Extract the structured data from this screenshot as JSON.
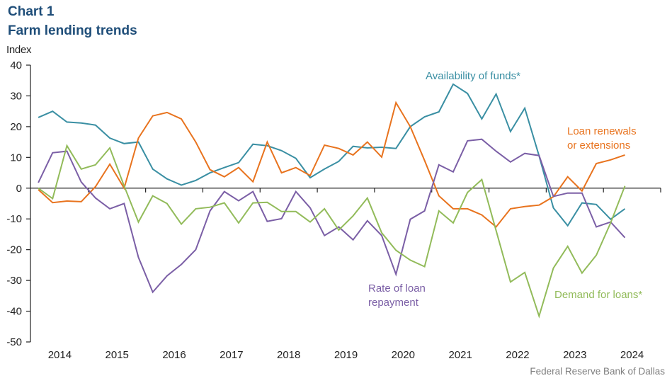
{
  "header": {
    "chart_number": "Chart 1",
    "title": "Farm lending trends",
    "title_color": "#1f4e79"
  },
  "source": "Federal Reserve Bank of Dallas",
  "chart_data": {
    "type": "line",
    "title": "Farm lending trends",
    "subtitle": "Chart 1",
    "xlabel": "",
    "ylabel": "Index",
    "ylim": [
      -50,
      40
    ],
    "yticks": [
      40,
      30,
      20,
      10,
      0,
      -10,
      -20,
      -30,
      -40,
      -50
    ],
    "xtick_labels": [
      "2014",
      "2015",
      "2016",
      "2017",
      "2018",
      "2019",
      "2020",
      "2021",
      "2022",
      "2023",
      "2024"
    ],
    "x_frequency": "quarterly",
    "x_start": "2014Q1",
    "x_end": "2024Q2",
    "grid": false,
    "legend": "inline annotations",
    "x": [
      "2014Q1",
      "2014Q2",
      "2014Q3",
      "2014Q4",
      "2015Q1",
      "2015Q2",
      "2015Q3",
      "2015Q4",
      "2016Q1",
      "2016Q2",
      "2016Q3",
      "2016Q4",
      "2017Q1",
      "2017Q2",
      "2017Q3",
      "2017Q4",
      "2018Q1",
      "2018Q2",
      "2018Q3",
      "2018Q4",
      "2019Q1",
      "2019Q2",
      "2019Q3",
      "2019Q4",
      "2020Q1",
      "2020Q2",
      "2020Q3",
      "2020Q4",
      "2021Q1",
      "2021Q2",
      "2021Q3",
      "2021Q4",
      "2022Q1",
      "2022Q2",
      "2022Q3",
      "2022Q4",
      "2023Q1",
      "2023Q2",
      "2023Q3",
      "2023Q4",
      "2024Q1",
      "2024Q2"
    ],
    "series": [
      {
        "name": "Availability of funds*",
        "color": "#3a8fa3",
        "label_lines": [
          "Availability of funds*"
        ],
        "values": [
          23,
          25,
          21.5,
          21.2,
          20.5,
          16.3,
          14.5,
          15,
          6.2,
          3,
          1,
          2.5,
          5,
          6.7,
          8.3,
          14.3,
          13.8,
          12.2,
          9.7,
          3.4,
          6.2,
          8.7,
          13.6,
          13.1,
          13.3,
          12.9,
          20,
          23.2,
          24.8,
          33.8,
          30.8,
          22.5,
          30.6,
          18.4,
          26,
          10.5,
          -6.4,
          -12.2,
          -4.8,
          -5.3,
          -10.1,
          -6.7
        ]
      },
      {
        "name": "Loan renewals or extensions",
        "color": "#e8731e",
        "label_lines": [
          "Loan renewals",
          "or extensions"
        ],
        "values": [
          -0.5,
          -4.7,
          -4.2,
          -4.4,
          0.5,
          7.8,
          0,
          16.3,
          23.5,
          24.6,
          22.5,
          15,
          6,
          3.7,
          6.7,
          2.1,
          15,
          5,
          6.7,
          4.1,
          14,
          12.9,
          10.8,
          15,
          10.1,
          27.8,
          20,
          9,
          -2.5,
          -6.7,
          -6.7,
          -8.7,
          -12.6,
          -6.7,
          -6,
          -5.5,
          -2.8,
          3.7,
          -0.9,
          8,
          9.2,
          10.8
        ]
      },
      {
        "name": "Rate of loan repayment",
        "color": "#7b5fa6",
        "label_lines": [
          "Rate of loan",
          "repayment"
        ],
        "values": [
          1.8,
          11.5,
          12,
          2,
          -3.2,
          -6.7,
          -5,
          -22.5,
          -33.8,
          -28.5,
          -24.8,
          -20,
          -7.4,
          -1.1,
          -4.1,
          -1.1,
          -10.8,
          -9.9,
          -1.1,
          -6.4,
          -15.4,
          -12.6,
          -16.8,
          -10.6,
          -15.4,
          -28,
          -10.1,
          -7.4,
          7.6,
          5.3,
          15.4,
          15.9,
          12,
          8.5,
          11.3,
          10.6,
          -2.7,
          -1.6,
          -1.6,
          -12.6,
          -11,
          -16.1
        ]
      },
      {
        "name": "Demand for loans*",
        "color": "#92bb5a",
        "label_lines": [
          "Demand for loans*"
        ],
        "values": [
          0,
          -3.4,
          13.8,
          6.2,
          7.6,
          13.1,
          0.7,
          -11,
          -2.5,
          -5,
          -11.7,
          -6.7,
          -6.2,
          -4.8,
          -11.3,
          -4.8,
          -4.6,
          -7.6,
          -7.6,
          -11,
          -6.7,
          -13.6,
          -9,
          -3.2,
          -14.5,
          -20.2,
          -23.4,
          -25.5,
          -7.4,
          -11.3,
          -1.4,
          2.8,
          -13.8,
          -30.5,
          -27.4,
          -41.6,
          -26,
          -18.9,
          -27.6,
          -21.8,
          -11.3,
          0.7
        ]
      }
    ]
  }
}
